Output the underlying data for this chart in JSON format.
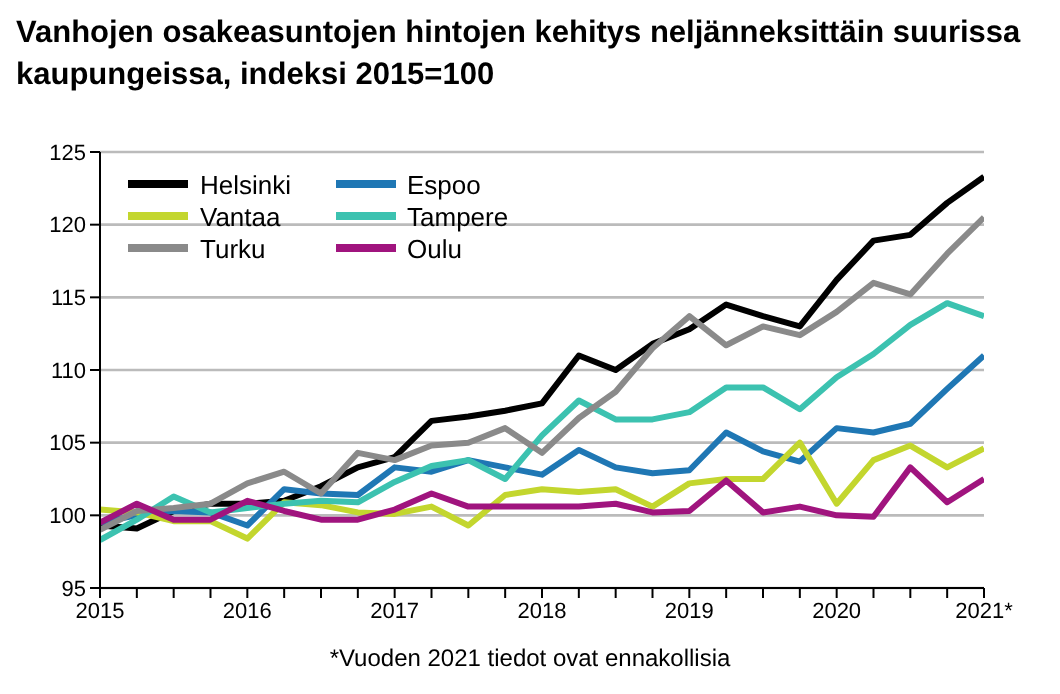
{
  "chart_data": {
    "type": "line",
    "title": "Vanhojen osakeasuntojen hintojen kehitys neljänneksittäin suurissa kaupungeissa, indeksi 2015=100",
    "annotations": [
      "*Vuoden 2021 tiedot ovat ennakollisia"
    ],
    "x": [
      2015,
      2015.25,
      2015.5,
      2015.75,
      2016,
      2016.25,
      2016.5,
      2016.75,
      2017,
      2017.25,
      2017.5,
      2017.75,
      2018,
      2018.25,
      2018.5,
      2018.75,
      2019,
      2019.25,
      2019.5,
      2019.75,
      2020,
      2020.25,
      2020.5,
      2020.75,
      2021
    ],
    "xlim": [
      2015,
      2021
    ],
    "xticks": [
      2015,
      {
        "value": 2015.25,
        "label": null
      },
      {
        "value": 2015.5,
        "label": null
      },
      {
        "value": 2015.75,
        "label": null
      },
      2016,
      {
        "value": 2016.25,
        "label": null
      },
      {
        "value": 2016.5,
        "label": null
      },
      {
        "value": 2016.75,
        "label": null
      },
      2017,
      {
        "value": 2017.25,
        "label": null
      },
      {
        "value": 2017.5,
        "label": null
      },
      {
        "value": 2017.75,
        "label": null
      },
      2018,
      {
        "value": 2018.25,
        "label": null
      },
      {
        "value": 2018.5,
        "label": null
      },
      {
        "value": 2018.75,
        "label": null
      },
      2019,
      {
        "value": 2019.25,
        "label": null
      },
      {
        "value": 2019.5,
        "label": null
      },
      {
        "value": 2019.75,
        "label": null
      },
      2020,
      {
        "value": 2020.25,
        "label": null
      },
      {
        "value": 2020.5,
        "label": null
      },
      {
        "value": 2020.75,
        "label": null
      },
      {
        "value": 2021,
        "label": "2021*"
      }
    ],
    "ylim": [
      95,
      125
    ],
    "yticks": [
      95,
      100,
      105,
      110,
      115,
      120,
      125
    ],
    "grid": "y",
    "legend": "top left",
    "marker": "none",
    "line_style": "solid",
    "series": [
      {
        "name": "Helsinki",
        "color": "#000000",
        "values": [
          99.3,
          99.1,
          100.3,
          100.8,
          100.8,
          101.0,
          102.0,
          103.3,
          104.0,
          106.5,
          106.8,
          107.2,
          107.7,
          111.0,
          110.0,
          111.8,
          112.8,
          114.5,
          113.7,
          113.0,
          116.2,
          118.9,
          119.3,
          121.5,
          123.3
        ]
      },
      {
        "name": "Espoo",
        "color": "#1f77b4",
        "values": [
          99.5,
          100.0,
          100.3,
          100.2,
          99.3,
          101.8,
          101.5,
          101.4,
          103.3,
          103.0,
          103.8,
          103.3,
          102.8,
          104.5,
          103.3,
          102.9,
          103.1,
          105.7,
          104.4,
          103.7,
          106.0,
          105.7,
          106.3,
          108.7,
          111.0
        ]
      },
      {
        "name": "Vantaa",
        "color": "#c3d62e",
        "values": [
          100.4,
          100.2,
          99.6,
          99.6,
          98.4,
          100.9,
          100.7,
          100.2,
          100.1,
          100.6,
          99.3,
          101.4,
          101.8,
          101.6,
          101.8,
          100.6,
          102.2,
          102.5,
          102.5,
          105.0,
          100.8,
          103.8,
          104.8,
          103.3,
          104.6
        ]
      },
      {
        "name": "Tampere",
        "color": "#3cc2b0",
        "values": [
          98.3,
          99.7,
          101.3,
          100.2,
          100.5,
          100.8,
          101.0,
          100.9,
          102.3,
          103.4,
          103.8,
          102.5,
          105.5,
          107.9,
          106.6,
          106.6,
          107.1,
          108.8,
          108.8,
          107.3,
          109.5,
          111.1,
          113.1,
          114.6,
          113.7
        ]
      },
      {
        "name": "Turku",
        "color": "#8a8a8a",
        "values": [
          99.0,
          100.3,
          100.5,
          100.8,
          102.2,
          103.0,
          101.5,
          104.3,
          103.8,
          104.8,
          105.0,
          106.0,
          104.3,
          106.7,
          108.5,
          111.5,
          113.7,
          111.7,
          113.0,
          112.4,
          114.0,
          116.0,
          115.2,
          118.0,
          120.5
        ]
      },
      {
        "name": "Oulu",
        "color": "#a0147e",
        "values": [
          99.5,
          100.8,
          99.7,
          99.7,
          101.0,
          100.3,
          99.7,
          99.7,
          100.4,
          101.5,
          100.6,
          100.6,
          100.6,
          100.6,
          100.8,
          100.2,
          100.3,
          102.4,
          100.2,
          100.6,
          100.0,
          99.9,
          103.3,
          100.9,
          102.5
        ]
      }
    ]
  }
}
